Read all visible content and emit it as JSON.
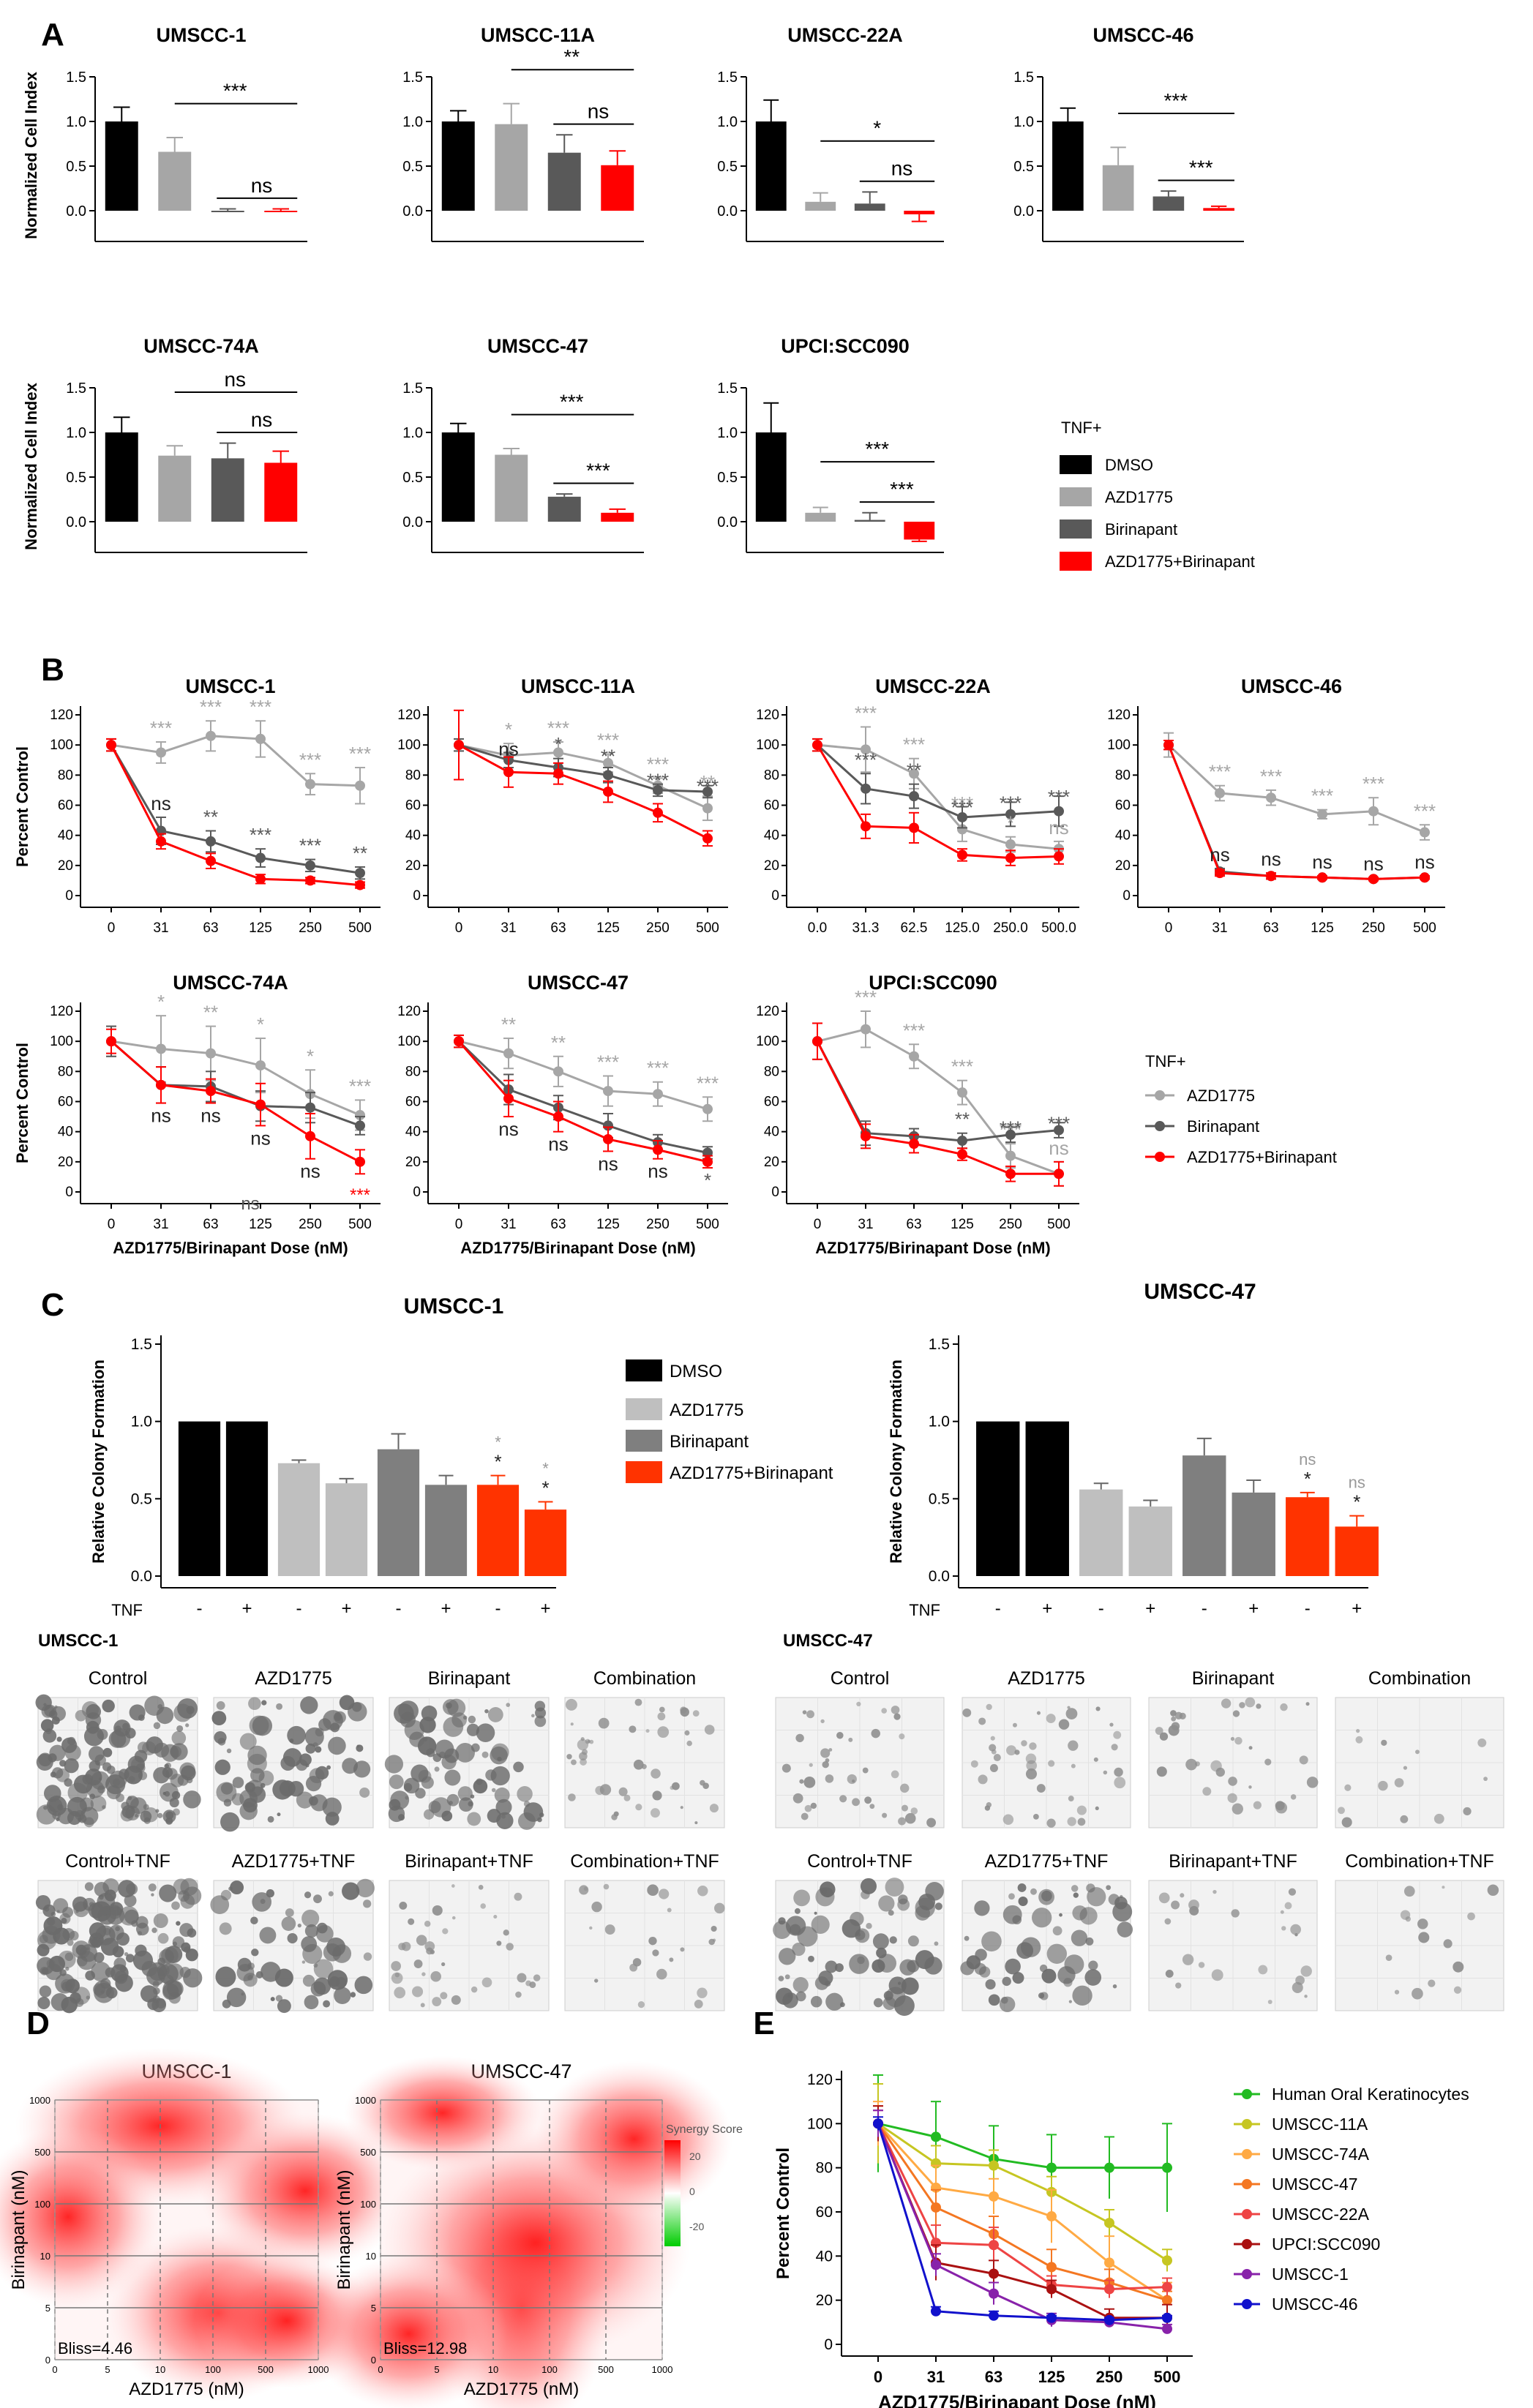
{
  "colors": {
    "black": "#000000",
    "light_gray": "#a6a6a6",
    "dark_gray": "#595959",
    "red": "#ff0000",
    "red_c": "#ff3300",
    "axis": "#000000"
  },
  "panel_labels": [
    "A",
    "B",
    "C",
    "D",
    "E"
  ],
  "panelA": {
    "ylabel": "Normalized Cell Index",
    "legend_title": "TNF+",
    "legend": [
      "DMSO",
      "AZD1775",
      "Birinapant",
      "AZD1775+Birinapant"
    ],
    "charts": [
      {
        "title": "UMSCC-1",
        "ylim": [
          0,
          1.5
        ],
        "values": [
          1.0,
          0.66,
          0.0,
          0.0
        ],
        "errors": [
          0.16,
          0.16,
          0.02,
          0.02
        ],
        "sig": [
          {
            "from": 1,
            "to": 3,
            "text": "***"
          },
          {
            "from": 2,
            "to": 3,
            "text": "ns"
          }
        ]
      },
      {
        "title": "UMSCC-11A",
        "ylim": [
          0,
          1.5
        ],
        "values": [
          1.0,
          0.97,
          0.65,
          0.51
        ],
        "errors": [
          0.12,
          0.23,
          0.2,
          0.16
        ],
        "sig": [
          {
            "from": 1,
            "to": 3,
            "text": "**"
          },
          {
            "from": 2,
            "to": 3,
            "text": "ns"
          }
        ]
      },
      {
        "title": "UMSCC-22A",
        "ylim": [
          0,
          1.5
        ],
        "values": [
          1.0,
          0.1,
          0.08,
          -0.04
        ],
        "errors": [
          0.24,
          0.1,
          0.13,
          0.08
        ],
        "sig": [
          {
            "from": 1,
            "to": 3,
            "text": "*"
          },
          {
            "from": 2,
            "to": 3,
            "text": "ns"
          }
        ]
      },
      {
        "title": "UMSCC-46",
        "ylim": [
          0,
          1.5
        ],
        "values": [
          1.0,
          0.51,
          0.16,
          0.03
        ],
        "errors": [
          0.15,
          0.2,
          0.06,
          0.02
        ],
        "sig": [
          {
            "from": 1,
            "to": 3,
            "text": "***"
          },
          {
            "from": 2,
            "to": 3,
            "text": "***"
          }
        ]
      },
      {
        "title": "UMSCC-74A",
        "ylim": [
          0,
          1.5
        ],
        "values": [
          1.0,
          0.74,
          0.71,
          0.66
        ],
        "errors": [
          0.17,
          0.11,
          0.17,
          0.13
        ],
        "sig": [
          {
            "from": 1,
            "to": 3,
            "text": "ns"
          },
          {
            "from": 2,
            "to": 3,
            "text": "ns"
          }
        ]
      },
      {
        "title": "UMSCC-47",
        "ylim": [
          0,
          1.5
        ],
        "values": [
          1.0,
          0.75,
          0.28,
          0.1
        ],
        "errors": [
          0.1,
          0.07,
          0.03,
          0.04
        ],
        "sig": [
          {
            "from": 1,
            "to": 3,
            "text": "***"
          },
          {
            "from": 2,
            "to": 3,
            "text": "***"
          }
        ]
      },
      {
        "title": "UPCI:SCC090",
        "ylim": [
          0,
          1.5
        ],
        "values": [
          1.0,
          0.1,
          0.02,
          -0.2
        ],
        "errors": [
          0.33,
          0.06,
          0.08,
          0.02
        ],
        "sig": [
          {
            "from": 1,
            "to": 3,
            "text": "***"
          },
          {
            "from": 2,
            "to": 3,
            "text": "***"
          }
        ]
      }
    ]
  },
  "panelB": {
    "ylabel": "Percent Control",
    "xlabel": "AZD1775/Birinapant Dose (nM)",
    "legend_title": "TNF+",
    "legend": [
      "AZD1775",
      "Birinapant",
      "AZD1775+Birinapant"
    ],
    "charts": [
      {
        "title": "UMSCC-1",
        "ticks": [
          "0",
          "31",
          "63",
          "125",
          "250",
          "500"
        ],
        "ylim": [
          0,
          120
        ],
        "series": [
          [
            100,
            95,
            106,
            104,
            74,
            73
          ],
          [
            100,
            43,
            36,
            25,
            20,
            15
          ],
          [
            100,
            36,
            23,
            11,
            10,
            7
          ]
        ],
        "errs": [
          [
            4,
            7,
            10,
            12,
            7,
            12
          ],
          [
            4,
            9,
            7,
            6,
            4,
            4
          ],
          [
            4,
            5,
            5,
            3,
            2,
            2
          ]
        ],
        "sigA": [
          "",
          "***",
          "***",
          "***",
          "***",
          "***"
        ],
        "sigB": [
          "",
          "ns",
          "**",
          "***",
          "***",
          "**"
        ],
        "sigC": [
          "",
          "",
          "",
          "",
          "",
          ""
        ]
      },
      {
        "title": "UMSCC-11A",
        "ticks": [
          "0",
          "31",
          "63",
          "125",
          "250",
          "500"
        ],
        "ylim": [
          0,
          120
        ],
        "series": [
          [
            100,
            93,
            95,
            88,
            73,
            58
          ],
          [
            100,
            90,
            85,
            80,
            70,
            69
          ],
          [
            100,
            82,
            81,
            69,
            55,
            38
          ]
        ],
        "errs": [
          [
            4,
            8,
            7,
            6,
            5,
            8
          ],
          [
            4,
            5,
            6,
            5,
            4,
            4
          ],
          [
            23,
            10,
            7,
            7,
            6,
            5
          ]
        ],
        "sigA": [
          "",
          "*",
          "***",
          "***",
          "***",
          "**"
        ],
        "sigB": [
          "",
          "ns",
          "*",
          "**",
          "***",
          "***"
        ],
        "sigC": [
          "",
          "",
          "",
          "",
          "",
          ""
        ]
      },
      {
        "title": "UMSCC-22A",
        "ticks": [
          "0.0",
          "31.3",
          "62.5",
          "125.0",
          "250.0",
          "500.0"
        ],
        "ylim": [
          0,
          120
        ],
        "series": [
          [
            100,
            97,
            81,
            44,
            34,
            31
          ],
          [
            100,
            71,
            66,
            52,
            54,
            56
          ],
          [
            100,
            46,
            45,
            27,
            25,
            26
          ]
        ],
        "errs": [
          [
            4,
            15,
            10,
            8,
            5,
            5
          ],
          [
            4,
            10,
            8,
            7,
            8,
            10
          ],
          [
            4,
            8,
            10,
            4,
            5,
            5
          ]
        ],
        "sigA": [
          "",
          "***",
          "***",
          "***",
          "*",
          "ns"
        ],
        "sigB": [
          "",
          "***",
          "**",
          "***",
          "***",
          "***"
        ],
        "sigC": [
          "",
          "",
          "",
          "",
          "",
          ""
        ]
      },
      {
        "title": "UMSCC-46",
        "ticks": [
          "0",
          "31",
          "63",
          "125",
          "250",
          "500"
        ],
        "ylim": [
          0,
          120
        ],
        "series": [
          [
            100,
            68,
            65,
            54,
            56,
            42
          ],
          [
            100,
            16,
            13,
            12,
            11,
            12
          ],
          [
            100,
            15,
            13,
            12,
            11,
            12
          ]
        ],
        "errs": [
          [
            8,
            5,
            5,
            3,
            9,
            5
          ],
          [
            3,
            2,
            2,
            1,
            1,
            1
          ],
          [
            3,
            2,
            2,
            1,
            1,
            1
          ]
        ],
        "sigA": [
          "",
          "***",
          "***",
          "***",
          "***",
          "***"
        ],
        "sigB": [
          "",
          "ns",
          "ns",
          "ns",
          "ns",
          "ns"
        ],
        "sigC": [
          "",
          "",
          "",
          "",
          "",
          ""
        ]
      },
      {
        "title": "UMSCC-74A",
        "ticks": [
          "0",
          "31",
          "63",
          "125",
          "250",
          "500"
        ],
        "ylim": [
          0,
          120
        ],
        "series": [
          [
            100,
            95,
            92,
            84,
            65,
            51
          ],
          [
            100,
            71,
            70,
            57,
            56,
            44
          ],
          [
            100,
            71,
            67,
            58,
            37,
            20
          ]
        ],
        "errs": [
          [
            10,
            22,
            18,
            18,
            16,
            10
          ],
          [
            10,
            12,
            10,
            10,
            10,
            6
          ],
          [
            8,
            12,
            8,
            14,
            15,
            8
          ]
        ],
        "sigA": [
          "",
          "*",
          "**",
          "*",
          "*",
          "***"
        ],
        "sigB": [
          "",
          "ns",
          "ns",
          "ns",
          "ns",
          ""
        ],
        "sigC": [
          "",
          "",
          "",
          "ns",
          "",
          "***"
        ]
      },
      {
        "title": "UMSCC-47",
        "ticks": [
          "0",
          "31",
          "63",
          "125",
          "250",
          "500"
        ],
        "ylim": [
          0,
          120
        ],
        "series": [
          [
            100,
            92,
            80,
            67,
            65,
            55
          ],
          [
            100,
            68,
            56,
            44,
            33,
            26
          ],
          [
            100,
            62,
            50,
            35,
            28,
            20
          ]
        ],
        "errs": [
          [
            4,
            10,
            10,
            10,
            8,
            8
          ],
          [
            4,
            10,
            8,
            8,
            5,
            4
          ],
          [
            4,
            12,
            10,
            8,
            6,
            4
          ]
        ],
        "sigA": [
          "",
          "**",
          "**",
          "***",
          "***",
          "***"
        ],
        "sigB": [
          "",
          "ns",
          "ns",
          "ns",
          "ns",
          "*"
        ],
        "sigC": [
          "",
          "",
          "",
          "",
          "",
          ""
        ]
      },
      {
        "title": "UPCI:SCC090",
        "ticks": [
          "0",
          "31",
          "63",
          "125",
          "250",
          "500"
        ],
        "ylim": [
          0,
          120
        ],
        "series": [
          [
            100,
            108,
            90,
            66,
            24,
            12
          ],
          [
            100,
            39,
            37,
            34,
            38,
            41
          ],
          [
            100,
            37,
            32,
            25,
            12,
            12
          ]
        ],
        "errs": [
          [
            12,
            12,
            8,
            8,
            8,
            8
          ],
          [
            12,
            8,
            5,
            5,
            5,
            5
          ],
          [
            12,
            8,
            6,
            4,
            5,
            8
          ]
        ],
        "sigA": [
          "",
          "***",
          "***",
          "***",
          "***",
          "ns"
        ],
        "sigB": [
          "",
          "",
          "",
          "**",
          "***",
          "***"
        ],
        "sigC": [
          "",
          "",
          "",
          "",
          "",
          ""
        ]
      }
    ]
  },
  "panelC": {
    "ylabel": "Relative Colony Formation",
    "legend": [
      "DMSO",
      "AZD1775",
      "Birinapant",
      "AZD1775+Birinapant"
    ],
    "tnf_label": "TNF",
    "tnf_marks": [
      "-",
      "+",
      "-",
      "+",
      "-",
      "+",
      "-",
      "+"
    ],
    "charts": [
      {
        "title": "UMSCC-1",
        "ylim": [
          0,
          1.5
        ],
        "values": [
          1.0,
          1.0,
          0.73,
          0.6,
          0.82,
          0.59,
          0.59,
          0.43
        ],
        "errors": [
          0,
          0,
          0.02,
          0.03,
          0.1,
          0.06,
          0.06,
          0.05
        ],
        "sigs": [
          [
            "",
            ""
          ],
          [
            "",
            ""
          ],
          [
            "",
            ""
          ],
          [
            "",
            ""
          ],
          [
            "",
            ""
          ],
          [
            "",
            ""
          ],
          [
            "*",
            "*"
          ],
          [
            "*",
            "*"
          ]
        ]
      },
      {
        "title": "UMSCC-47",
        "ylim": [
          0,
          1.5
        ],
        "values": [
          1.0,
          1.0,
          0.56,
          0.45,
          0.78,
          0.54,
          0.51,
          0.32
        ],
        "errors": [
          0,
          0,
          0.04,
          0.04,
          0.11,
          0.08,
          0.03,
          0.07
        ],
        "sigs": [
          [
            "",
            ""
          ],
          [
            "",
            ""
          ],
          [
            "",
            ""
          ],
          [
            "",
            ""
          ],
          [
            "",
            ""
          ],
          [
            "",
            ""
          ],
          [
            "ns",
            "*"
          ],
          [
            "ns",
            "*"
          ]
        ]
      }
    ],
    "image_groups": [
      {
        "title": "UMSCC-1",
        "top": [
          "Control",
          "AZD1775",
          "Birinapant",
          "Combination"
        ],
        "bottom": [
          "Control+TNF",
          "AZD1775+TNF",
          "Birinapant+TNF",
          "Combination+TNF"
        ]
      },
      {
        "title": "UMSCC-47",
        "top": [
          "Control",
          "AZD1775",
          "Birinapant",
          "Combination"
        ],
        "bottom": [
          "Control+TNF",
          "AZD1775+TNF",
          "Birinapant+TNF",
          "Combination+TNF"
        ]
      }
    ]
  },
  "panelD": {
    "ylabel": "Birinapant (nM)",
    "xlabel": "AZD1775 (nM)",
    "xticks": [
      "0",
      "5",
      "10",
      "100",
      "500",
      "1000"
    ],
    "yticks": [
      "0",
      "5",
      "10",
      "100",
      "500",
      "1000"
    ],
    "colorbar_title": "Synergy Score",
    "colorbar_ticks": [
      "20",
      "0",
      "-20"
    ],
    "charts": [
      {
        "title": "UMSCC-1",
        "bliss": "Bliss=4.46"
      },
      {
        "title": "UMSCC-47",
        "bliss": "Bliss=12.98"
      }
    ]
  },
  "panelE": {
    "ylabel": "Percent Control",
    "xlabel": "AZD1775/Birinapant Dose (nM)",
    "ticks": [
      "0",
      "31",
      "63",
      "125",
      "250",
      "500"
    ],
    "ylim": [
      0,
      120
    ],
    "series": [
      {
        "name": "Human Oral Keratinocytes",
        "color": "#22bb22",
        "values": [
          100,
          94,
          84,
          80,
          80,
          80
        ],
        "err": [
          22,
          16,
          15,
          15,
          14,
          20
        ]
      },
      {
        "name": "UMSCC-11A",
        "color": "#c6c622",
        "values": [
          100,
          82,
          81,
          69,
          55,
          38
        ],
        "err": [
          18,
          8,
          7,
          7,
          6,
          5
        ]
      },
      {
        "name": "UMSCC-74A",
        "color": "#ffaa44",
        "values": [
          100,
          71,
          67,
          58,
          37,
          20
        ],
        "err": [
          10,
          10,
          8,
          12,
          12,
          8
        ]
      },
      {
        "name": "UMSCC-47",
        "color": "#f47722",
        "values": [
          100,
          62,
          50,
          35,
          28,
          20
        ],
        "err": [
          8,
          8,
          8,
          8,
          6,
          4
        ]
      },
      {
        "name": "UMSCC-22A",
        "color": "#ee4444",
        "values": [
          100,
          46,
          45,
          27,
          25,
          26
        ],
        "err": [
          6,
          8,
          8,
          4,
          4,
          4
        ]
      },
      {
        "name": "UPCI:SCC090",
        "color": "#aa1111",
        "values": [
          100,
          37,
          32,
          25,
          12,
          12
        ],
        "err": [
          8,
          8,
          6,
          4,
          4,
          6
        ]
      },
      {
        "name": "UMSCC-1",
        "color": "#8822aa",
        "values": [
          100,
          36,
          23,
          11,
          10,
          7
        ],
        "err": [
          6,
          5,
          5,
          3,
          2,
          2
        ]
      },
      {
        "name": "UMSCC-46",
        "color": "#1111cc",
        "values": [
          100,
          15,
          13,
          12,
          11,
          12
        ],
        "err": [
          3,
          2,
          2,
          1,
          1,
          1
        ]
      }
    ]
  }
}
